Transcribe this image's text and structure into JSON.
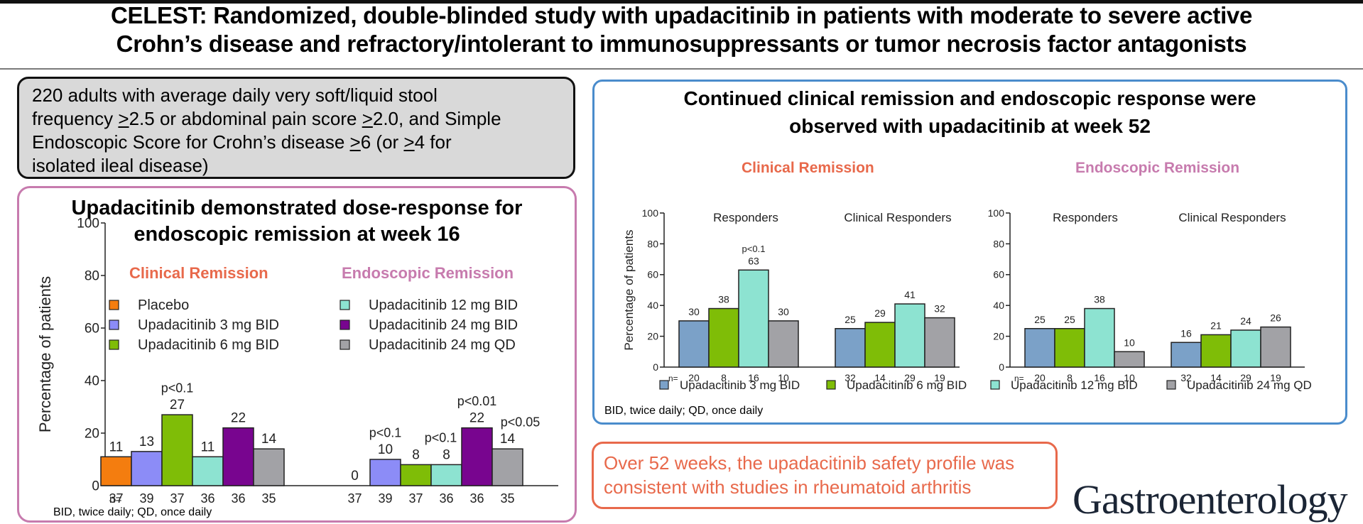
{
  "header": {
    "title_line1": "CELEST: Randomized, double-blinded study with upadacitinib in patients with moderate to severe active",
    "title_line2": "Crohn’s disease and refractory/intolerant to immunosuppressants or tumor necrosis factor antagonists"
  },
  "criteria": {
    "line1": "220 adults with average daily very soft/liquid stool",
    "line2_a": "frequency ",
    "line2_b": ">",
    "line2_c": "2.5 or abdominal pain score ",
    "line2_d": ">",
    "line2_e": "2.0, and Simple",
    "line3_a": "Endoscopic Score for Crohn’s disease ",
    "line3_b": ">",
    "line3_c": "6 (or ",
    "line3_d": ">",
    "line3_e": "4 for",
    "line4": "isolated ileal disease)"
  },
  "left_panel": {
    "title_line1": "Upadacitinib demonstrated dose-response for",
    "title_line2": "endoscopic remission at week 16",
    "section_clinical": "Clinical Remission",
    "section_endoscopic": "Endoscopic Remission",
    "footnote": "BID, twice daily; QD, once daily"
  },
  "right_panel": {
    "title_line1": "Continued clinical remission and endoscopic response were",
    "title_line2": "observed with upadacitinib at week 52",
    "section_clinical": "Clinical Remission",
    "section_endoscopic": "Endoscopic Remission",
    "footnote": "BID, twice daily; QD, once daily"
  },
  "safety_box": {
    "line1": "Over 52 weeks, the upadacitinib safety profile was",
    "line2": "consistent with studies in rheumatoid arthritis"
  },
  "journal_logo": "Gastroenterology",
  "colors": {
    "placebo": "#f47d0f",
    "upa3_left": "#8c8cf7",
    "upa6": "#7fbd07",
    "upa12": "#8de3d1",
    "upa24bid": "#78058f",
    "upa24qd": "#a2a2a6",
    "upa3_right": "#7ba1c8",
    "accent_orange": "#e8694b",
    "accent_pink": "#c77bae",
    "accent_blue": "#4a8ccc"
  },
  "chart_data": [
    {
      "type": "bar",
      "title": "Week 16",
      "ylabel": "Percentage of patients",
      "ylim": [
        0,
        100
      ],
      "yticks": [
        0,
        20,
        40,
        60,
        80,
        100
      ],
      "n_label": "n=",
      "legend": [
        {
          "name": "Placebo",
          "color": "#f47d0f"
        },
        {
          "name": "Upadacitinib 3 mg BID",
          "color": "#8c8cf7"
        },
        {
          "name": "Upadacitinib 6 mg BID",
          "color": "#7fbd07"
        },
        {
          "name": "Upadacitinib 12 mg BID",
          "color": "#8de3d1"
        },
        {
          "name": "Upadacitinib 24 mg BID",
          "color": "#78058f"
        },
        {
          "name": "Upadacitinib 24 mg QD",
          "color": "#a2a2a6"
        }
      ],
      "groups": [
        {
          "name": "Clinical Remission",
          "values": [
            11,
            13,
            27,
            11,
            22,
            14
          ],
          "n": [
            37,
            39,
            37,
            36,
            36,
            35
          ],
          "pvalues": [
            "",
            "",
            "p<0.1",
            "",
            "",
            ""
          ]
        },
        {
          "name": "Endoscopic Remission",
          "values": [
            0,
            10,
            8,
            8,
            22,
            14
          ],
          "n": [
            37,
            39,
            37,
            36,
            36,
            35
          ],
          "pvalues": [
            "",
            "p<0.1",
            "",
            "p<0.1",
            "p<0.01",
            "p<0.05"
          ]
        }
      ]
    },
    {
      "type": "bar",
      "title": "Week 52 - Clinical Remission",
      "ylabel": "Percentage of patients",
      "ylim": [
        0,
        100
      ],
      "yticks": [
        0,
        20,
        40,
        60,
        80,
        100
      ],
      "n_label": "n=",
      "series_names": [
        "Upadacitinib 3 mg BID",
        "Upadacitinib 6 mg BID",
        "Upadacitinib 12 mg BID",
        "Upadacitinib 24 mg QD"
      ],
      "groups": [
        {
          "name": "Responders",
          "values": [
            30,
            38,
            63,
            30
          ],
          "n": [
            20,
            8,
            16,
            10
          ],
          "pvalues": [
            "",
            "",
            "p<0.1",
            ""
          ]
        },
        {
          "name": "Clinical Responders",
          "values": [
            25,
            29,
            41,
            32
          ],
          "n": [
            32,
            14,
            29,
            19
          ],
          "pvalues": [
            "",
            "",
            "",
            ""
          ]
        }
      ]
    },
    {
      "type": "bar",
      "title": "Week 52 - Endoscopic Remission",
      "ylabel": "",
      "ylim": [
        0,
        100
      ],
      "yticks": [
        0,
        20,
        40,
        60,
        80,
        100
      ],
      "n_label": "n=",
      "series_names": [
        "Upadacitinib 3 mg BID",
        "Upadacitinib 6 mg BID",
        "Upadacitinib 12 mg BID",
        "Upadacitinib 24 mg QD"
      ],
      "groups": [
        {
          "name": "Responders",
          "values": [
            25,
            25,
            38,
            10
          ],
          "n": [
            20,
            8,
            16,
            10
          ],
          "pvalues": [
            "",
            "",
            "",
            ""
          ]
        },
        {
          "name": "Clinical Responders",
          "values": [
            16,
            21,
            24,
            26
          ],
          "n": [
            32,
            14,
            29,
            19
          ],
          "pvalues": [
            "",
            "",
            "",
            ""
          ]
        }
      ]
    }
  ],
  "right_legend": [
    {
      "name": "Upadacitinib 3 mg BID",
      "color": "#7ba1c8"
    },
    {
      "name": "Upadacitinib 6 mg BID",
      "color": "#7fbd07"
    },
    {
      "name": "Upadacitinib 12 mg BID",
      "color": "#8de3d1"
    },
    {
      "name": "Upadacitinib 24 mg QD",
      "color": "#a2a2a6"
    }
  ]
}
